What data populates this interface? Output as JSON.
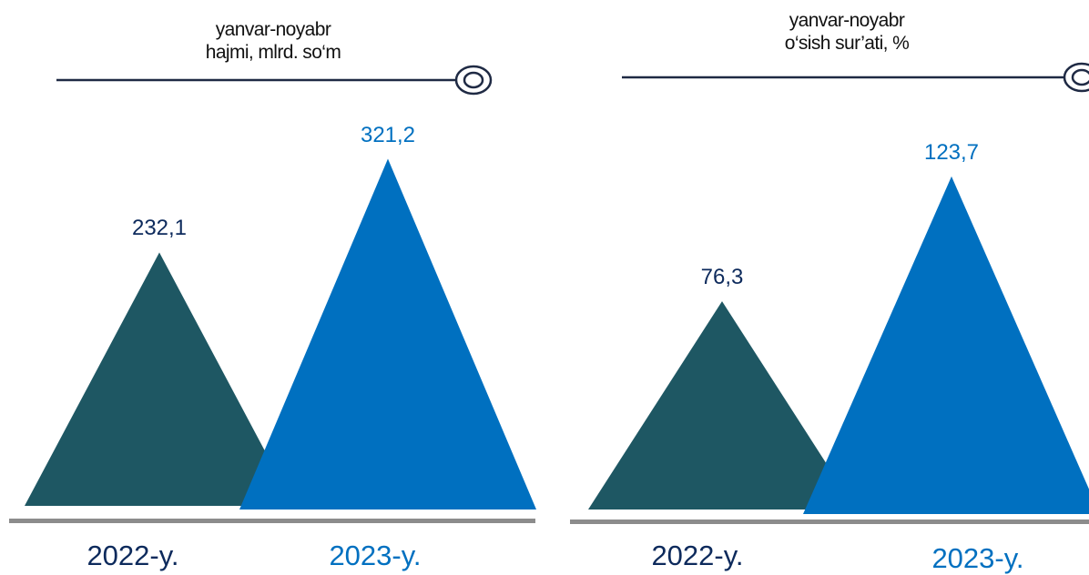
{
  "colors": {
    "series_2022": "#1e5763",
    "series_2023": "#0070c0",
    "label_2022": "#0d2a5c",
    "title_line": "#1f2a44",
    "baseline": "#8c8c8c"
  },
  "chart_data": [
    {
      "type": "bar",
      "bar_shape": "triangle",
      "title": "yanvar-noyabr\nhajmi, mlrd.  so‘m",
      "categories": [
        "2022-y.",
        "2023-y."
      ],
      "values": [
        232.1,
        321.2
      ],
      "value_labels": [
        "232,1",
        "321,2"
      ],
      "ylim": [
        0,
        390
      ],
      "grid": false,
      "legend": "none"
    },
    {
      "type": "bar",
      "bar_shape": "triangle",
      "title": "yanvar-noyabr\no‘sish sur’ati, %",
      "categories": [
        "2022-y.",
        "2023-y."
      ],
      "values": [
        76.3,
        123.7
      ],
      "value_labels": [
        "76,3",
        "123,7"
      ],
      "ylim": [
        0,
        150
      ],
      "grid": false,
      "legend": "none"
    }
  ]
}
